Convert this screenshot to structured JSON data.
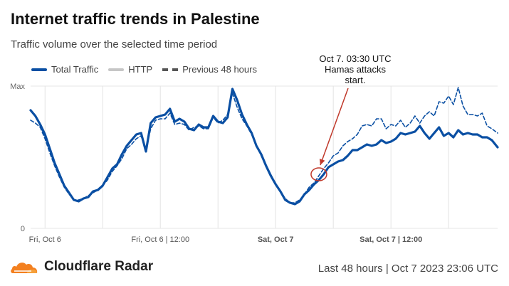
{
  "header": {
    "title": "Internet traffic trends in Palestine",
    "subtitle": "Traffic volume over the selected time period"
  },
  "legend": [
    {
      "label": "Total Traffic"
    },
    {
      "label": "HTTP"
    },
    {
      "label": "Previous 48 hours"
    }
  ],
  "annotation": {
    "line1": "Oct 7. 03:30 UTC",
    "line2": "Hamas attacks",
    "line3": "start."
  },
  "footer": {
    "brand": "Cloudflare Radar",
    "range": "Last 48 hours | Oct 7 2023 23:06 UTC"
  },
  "colors": {
    "total": "#0a4fa3",
    "previous": "#0a4fa3",
    "http": "#c6c6c6",
    "annotation": "#c0392b",
    "brand_orange": "#f38020"
  },
  "chart_data": {
    "type": "line",
    "x_unit": "hours since Fri, Oct 6 00:00 UTC",
    "xlim": [
      -1.5,
      47.1
    ],
    "ylim": [
      0,
      1
    ],
    "y_tick_labels": [
      {
        "value": 0,
        "label": "0"
      },
      {
        "value": 1,
        "label": "Max"
      }
    ],
    "x_ticks": [
      {
        "value": 0,
        "label": "Fri, Oct 6",
        "bold": false
      },
      {
        "value": 12,
        "label": "Fri, Oct 6 | 12:00",
        "bold": false
      },
      {
        "value": 24,
        "label": "Sat, Oct 7",
        "bold": true
      },
      {
        "value": 36,
        "label": "Sat, Oct 7 | 12:00",
        "bold": true
      }
    ],
    "grid": true,
    "annotation_point": {
      "x": 28.5,
      "y": 0.38
    },
    "series": [
      {
        "name": "Total Traffic",
        "style": "solid",
        "points": [
          [
            -1.5,
            0.83
          ],
          [
            -1,
            0.79
          ],
          [
            -0.5,
            0.73
          ],
          [
            0,
            0.66
          ],
          [
            0.5,
            0.56
          ],
          [
            1,
            0.46
          ],
          [
            1.5,
            0.38
          ],
          [
            2,
            0.3
          ],
          [
            2.5,
            0.25
          ],
          [
            3,
            0.2
          ],
          [
            3.5,
            0.19
          ],
          [
            4,
            0.21
          ],
          [
            4.5,
            0.22
          ],
          [
            5,
            0.26
          ],
          [
            5.5,
            0.27
          ],
          [
            6,
            0.3
          ],
          [
            6.5,
            0.36
          ],
          [
            7,
            0.42
          ],
          [
            7.5,
            0.45
          ],
          [
            8,
            0.52
          ],
          [
            8.5,
            0.58
          ],
          [
            9,
            0.62
          ],
          [
            9.5,
            0.66
          ],
          [
            10,
            0.67
          ],
          [
            10.5,
            0.54
          ],
          [
            11,
            0.74
          ],
          [
            11.5,
            0.78
          ],
          [
            12,
            0.79
          ],
          [
            12.5,
            0.8
          ],
          [
            13,
            0.84
          ],
          [
            13.5,
            0.75
          ],
          [
            14,
            0.77
          ],
          [
            14.5,
            0.75
          ],
          [
            15,
            0.7
          ],
          [
            15.5,
            0.69
          ],
          [
            16,
            0.73
          ],
          [
            16.5,
            0.71
          ],
          [
            17,
            0.71
          ],
          [
            17.5,
            0.79
          ],
          [
            18,
            0.75
          ],
          [
            18.5,
            0.74
          ],
          [
            19,
            0.78
          ],
          [
            19.5,
            0.98
          ],
          [
            20,
            0.9
          ],
          [
            20.5,
            0.8
          ],
          [
            21,
            0.73
          ],
          [
            21.5,
            0.67
          ],
          [
            22,
            0.58
          ],
          [
            22.5,
            0.52
          ],
          [
            23,
            0.44
          ],
          [
            23.5,
            0.37
          ],
          [
            24,
            0.31
          ],
          [
            24.5,
            0.26
          ],
          [
            25,
            0.2
          ],
          [
            25.5,
            0.18
          ],
          [
            26,
            0.17
          ],
          [
            26.5,
            0.19
          ],
          [
            27,
            0.24
          ],
          [
            27.5,
            0.27
          ],
          [
            28,
            0.31
          ],
          [
            28.5,
            0.34
          ],
          [
            29,
            0.38
          ],
          [
            29.5,
            0.43
          ],
          [
            30,
            0.45
          ],
          [
            30.5,
            0.47
          ],
          [
            31,
            0.48
          ],
          [
            31.5,
            0.51
          ],
          [
            32,
            0.55
          ],
          [
            32.5,
            0.55
          ],
          [
            33,
            0.57
          ],
          [
            33.5,
            0.59
          ],
          [
            34,
            0.58
          ],
          [
            34.5,
            0.59
          ],
          [
            35,
            0.62
          ],
          [
            35.5,
            0.6
          ],
          [
            36,
            0.61
          ],
          [
            36.5,
            0.63
          ],
          [
            37,
            0.67
          ],
          [
            37.5,
            0.66
          ],
          [
            38,
            0.67
          ],
          [
            38.5,
            0.68
          ],
          [
            39,
            0.72
          ],
          [
            39.5,
            0.67
          ],
          [
            40,
            0.63
          ],
          [
            40.5,
            0.67
          ],
          [
            41,
            0.71
          ],
          [
            41.5,
            0.65
          ],
          [
            42,
            0.67
          ],
          [
            42.5,
            0.64
          ],
          [
            43,
            0.69
          ],
          [
            43.5,
            0.66
          ],
          [
            44,
            0.67
          ],
          [
            44.5,
            0.66
          ],
          [
            45,
            0.66
          ],
          [
            45.5,
            0.64
          ],
          [
            46,
            0.64
          ],
          [
            46.5,
            0.62
          ],
          [
            47.1,
            0.57
          ]
        ]
      },
      {
        "name": "Previous 48 hours",
        "style": "dashed",
        "points": [
          [
            -1.5,
            0.76
          ],
          [
            -1,
            0.74
          ],
          [
            -0.5,
            0.71
          ],
          [
            0,
            0.63
          ],
          [
            0.5,
            0.53
          ],
          [
            1,
            0.44
          ],
          [
            1.5,
            0.36
          ],
          [
            2,
            0.29
          ],
          [
            2.5,
            0.24
          ],
          [
            3,
            0.2
          ],
          [
            3.5,
            0.2
          ],
          [
            4,
            0.21
          ],
          [
            4.5,
            0.23
          ],
          [
            5,
            0.25
          ],
          [
            5.5,
            0.27
          ],
          [
            6,
            0.3
          ],
          [
            6.5,
            0.34
          ],
          [
            7,
            0.4
          ],
          [
            7.5,
            0.44
          ],
          [
            8,
            0.49
          ],
          [
            8.5,
            0.56
          ],
          [
            9,
            0.59
          ],
          [
            9.5,
            0.63
          ],
          [
            10,
            0.65
          ],
          [
            10.5,
            0.55
          ],
          [
            11,
            0.7
          ],
          [
            11.5,
            0.76
          ],
          [
            12,
            0.77
          ],
          [
            12.5,
            0.77
          ],
          [
            13,
            0.81
          ],
          [
            13.5,
            0.73
          ],
          [
            14,
            0.74
          ],
          [
            14.5,
            0.73
          ],
          [
            15,
            0.69
          ],
          [
            15.5,
            0.71
          ],
          [
            16,
            0.72
          ],
          [
            16.5,
            0.7
          ],
          [
            17,
            0.7
          ],
          [
            17.5,
            0.78
          ],
          [
            18,
            0.74
          ],
          [
            18.5,
            0.76
          ],
          [
            19,
            0.8
          ],
          [
            19.5,
            0.95
          ],
          [
            20,
            0.85
          ],
          [
            20.5,
            0.77
          ],
          [
            21,
            0.72
          ],
          [
            21.5,
            0.66
          ],
          [
            22,
            0.58
          ],
          [
            22.5,
            0.51
          ],
          [
            23,
            0.44
          ],
          [
            23.5,
            0.38
          ],
          [
            24,
            0.31
          ],
          [
            24.5,
            0.26
          ],
          [
            25,
            0.21
          ],
          [
            25.5,
            0.18
          ],
          [
            26,
            0.18
          ],
          [
            26.5,
            0.2
          ],
          [
            27,
            0.24
          ],
          [
            27.5,
            0.29
          ],
          [
            28,
            0.32
          ],
          [
            28.5,
            0.37
          ],
          [
            29,
            0.42
          ],
          [
            29.5,
            0.46
          ],
          [
            30,
            0.51
          ],
          [
            30.5,
            0.53
          ],
          [
            31,
            0.58
          ],
          [
            31.5,
            0.61
          ],
          [
            32,
            0.63
          ],
          [
            32.5,
            0.66
          ],
          [
            33,
            0.72
          ],
          [
            33.5,
            0.73
          ],
          [
            34,
            0.72
          ],
          [
            34.5,
            0.77
          ],
          [
            35,
            0.77
          ],
          [
            35.5,
            0.7
          ],
          [
            36,
            0.73
          ],
          [
            36.5,
            0.72
          ],
          [
            37,
            0.76
          ],
          [
            37.5,
            0.71
          ],
          [
            38,
            0.74
          ],
          [
            38.5,
            0.79
          ],
          [
            39,
            0.74
          ],
          [
            39.5,
            0.79
          ],
          [
            40,
            0.82
          ],
          [
            40.5,
            0.79
          ],
          [
            41,
            0.89
          ],
          [
            41.5,
            0.88
          ],
          [
            42,
            0.93
          ],
          [
            42.5,
            0.87
          ],
          [
            43,
            0.99
          ],
          [
            43.5,
            0.86
          ],
          [
            44,
            0.8
          ],
          [
            44.5,
            0.8
          ],
          [
            45,
            0.79
          ],
          [
            45.5,
            0.81
          ],
          [
            46,
            0.72
          ],
          [
            46.5,
            0.7
          ],
          [
            47.1,
            0.67
          ]
        ]
      }
    ]
  }
}
